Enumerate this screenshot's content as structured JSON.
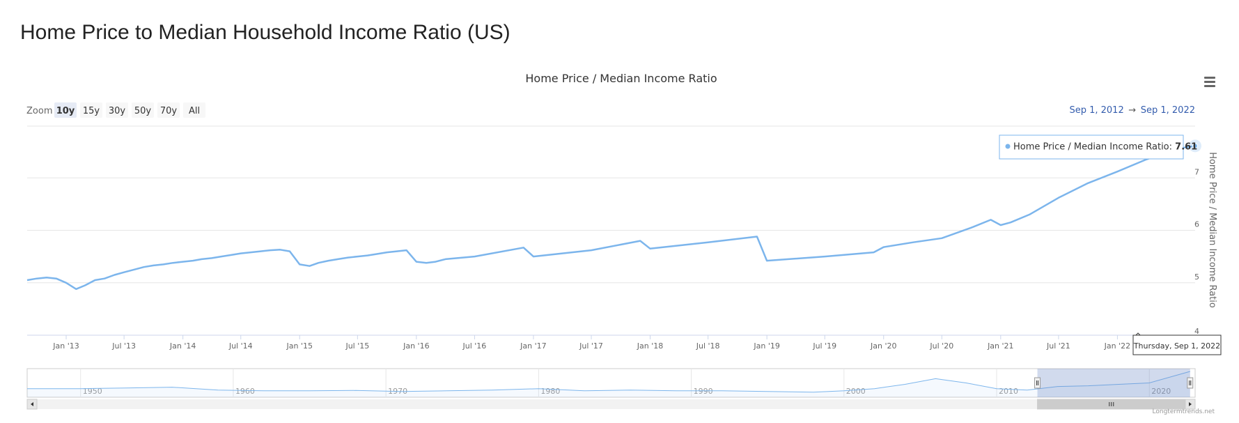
{
  "page_title": "Home Price to Median Household Income Ratio (US)",
  "chart_data": {
    "type": "line",
    "title": "Home Price / Median Income Ratio",
    "ylabel": "Home Price / Median Income Ratio",
    "xlabel": "",
    "ylim": [
      4,
      8
    ],
    "yticks": [
      4,
      5,
      6,
      7
    ],
    "ytick_labels": [
      "4",
      "5",
      "6",
      "7"
    ],
    "xlim": [
      "2012-09-01",
      "2022-09-01"
    ],
    "grid": true,
    "legend": "none",
    "xtick_labels": [
      "Jan '13",
      "Jul '13",
      "Jan '14",
      "Jul '14",
      "Jan '15",
      "Jul '15",
      "Jan '16",
      "Jul '16",
      "Jan '17",
      "Jul '17",
      "Jan '18",
      "Jul '18",
      "Jan '19",
      "Jul '19",
      "Jan '20",
      "Jul '20",
      "Jan '21",
      "Jul '21",
      "Jan '22"
    ],
    "xtick_dates": [
      "2013-01-01",
      "2013-07-01",
      "2014-01-01",
      "2014-07-01",
      "2015-01-01",
      "2015-07-01",
      "2016-01-01",
      "2016-07-01",
      "2017-01-01",
      "2017-07-01",
      "2018-01-01",
      "2018-07-01",
      "2019-01-01",
      "2019-07-01",
      "2020-01-01",
      "2020-07-01",
      "2021-01-01",
      "2021-07-01",
      "2022-01-01"
    ],
    "series": [
      {
        "name": "Home Price / Median Income Ratio",
        "color": "#7cb5ec",
        "x": [
          "2012-09-01",
          "2012-10-01",
          "2012-11-01",
          "2012-12-01",
          "2013-01-01",
          "2013-02-01",
          "2013-03-01",
          "2013-04-01",
          "2013-05-01",
          "2013-06-01",
          "2013-07-01",
          "2013-08-01",
          "2013-09-01",
          "2013-10-01",
          "2013-11-01",
          "2013-12-01",
          "2014-01-01",
          "2014-02-01",
          "2014-03-01",
          "2014-04-01",
          "2014-05-01",
          "2014-06-01",
          "2014-07-01",
          "2014-08-01",
          "2014-09-01",
          "2014-10-01",
          "2014-11-01",
          "2014-12-01",
          "2015-01-01",
          "2015-02-01",
          "2015-03-01",
          "2015-04-01",
          "2015-05-01",
          "2015-06-01",
          "2015-07-01",
          "2015-08-01",
          "2015-09-01",
          "2015-10-01",
          "2015-11-01",
          "2015-12-01",
          "2016-01-01",
          "2016-02-01",
          "2016-03-01",
          "2016-04-01",
          "2016-07-01",
          "2016-12-01",
          "2017-01-01",
          "2017-07-01",
          "2017-12-01",
          "2018-01-01",
          "2018-07-01",
          "2018-12-01",
          "2019-01-01",
          "2019-07-01",
          "2019-12-01",
          "2020-01-01",
          "2020-04-01",
          "2020-07-01",
          "2020-10-01",
          "2020-12-01",
          "2021-01-01",
          "2021-02-01",
          "2021-04-01",
          "2021-07-01",
          "2021-10-01",
          "2022-01-01",
          "2022-04-01",
          "2022-07-01",
          "2022-09-01"
        ],
        "y": [
          5.05,
          5.08,
          5.1,
          5.08,
          5.0,
          4.88,
          4.95,
          5.05,
          5.08,
          5.15,
          5.2,
          5.25,
          5.3,
          5.33,
          5.35,
          5.38,
          5.4,
          5.42,
          5.45,
          5.47,
          5.5,
          5.53,
          5.56,
          5.58,
          5.6,
          5.62,
          5.63,
          5.6,
          5.35,
          5.32,
          5.38,
          5.42,
          5.45,
          5.48,
          5.5,
          5.52,
          5.55,
          5.58,
          5.6,
          5.62,
          5.4,
          5.38,
          5.4,
          5.45,
          5.5,
          5.67,
          5.5,
          5.62,
          5.8,
          5.65,
          5.77,
          5.88,
          5.42,
          5.5,
          5.58,
          5.68,
          5.77,
          5.85,
          6.05,
          6.2,
          6.1,
          6.15,
          6.3,
          6.62,
          6.9,
          7.12,
          7.35,
          7.55,
          7.61
        ]
      }
    ],
    "tooltip": {
      "date_label": "Thursday, Sep 1, 2022",
      "series_name": "Home Price / Median Income Ratio",
      "value": "7.61"
    },
    "range_selector": {
      "zoom_label": "Zoom",
      "buttons": [
        "10y",
        "15y",
        "30y",
        "50y",
        "70y",
        "All"
      ],
      "selected": "10y",
      "from": "Sep 1, 2012",
      "separator": "→",
      "to": "Sep 1, 2022"
    },
    "navigator": {
      "x_labels": [
        "1950",
        "1960",
        "1970",
        "1980",
        "1990",
        "2000",
        "2010",
        "2020"
      ],
      "x_years": [
        1950,
        1960,
        1970,
        1980,
        1990,
        2000,
        2010,
        2020
      ],
      "xlim": [
        1946.5,
        2023.0
      ],
      "selected_range": [
        2012.67,
        2022.67
      ],
      "overview_years": [
        1946.5,
        1950,
        1953,
        1956,
        1959,
        1962,
        1965,
        1968,
        1971,
        1974,
        1977,
        1980,
        1983,
        1986,
        1989,
        1992,
        1995,
        1998,
        2000,
        2002,
        2004,
        2006,
        2008,
        2010,
        2012,
        2014,
        2016,
        2018,
        2020,
        2022.67
      ],
      "overview_values": [
        5.2,
        5.2,
        5.3,
        5.4,
        5.0,
        4.9,
        4.9,
        4.95,
        4.8,
        4.9,
        5.0,
        5.2,
        4.9,
        5.0,
        4.9,
        4.9,
        4.8,
        4.7,
        4.9,
        5.2,
        5.8,
        6.6,
        6.0,
        5.2,
        5.0,
        5.5,
        5.6,
        5.8,
        6.0,
        7.61
      ]
    },
    "menu_icon": "hamburger-menu-icon",
    "credits": "Longtermtrends.net"
  }
}
